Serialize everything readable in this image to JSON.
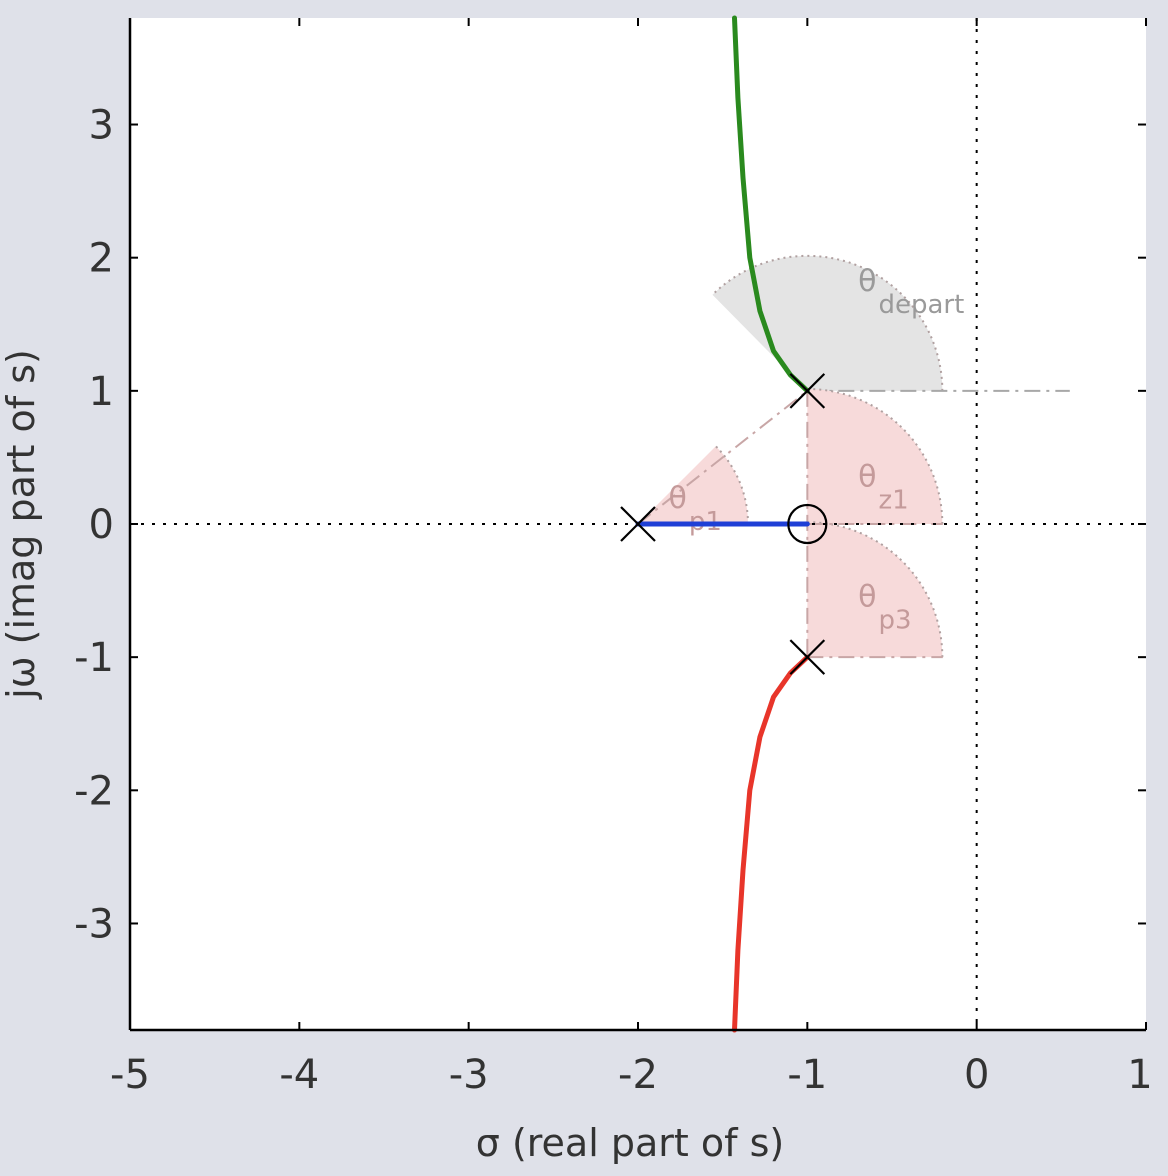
{
  "chart_data": {
    "type": "line",
    "subtype": "root-locus",
    "title": "",
    "xlabel": "σ (real part of s)",
    "ylabel": "jω (imag part of s)",
    "xlim": [
      -5,
      1
    ],
    "ylim": [
      -3.8,
      3.8
    ],
    "xticks": [
      -5,
      -4,
      -3,
      -2,
      -1,
      0,
      1
    ],
    "yticks": [
      -3,
      -2,
      -1,
      0,
      1,
      2,
      3
    ],
    "xtick_labels": [
      "-5",
      "-4",
      "-3",
      "-2",
      "-1",
      "0",
      "1"
    ],
    "ytick_labels": [
      "-3",
      "-2",
      "-1",
      "0",
      "1",
      "2",
      "3"
    ],
    "grid": false,
    "axis_lines": [
      "real-axis dotted at y=0",
      "imag-axis dotted at x=0"
    ],
    "poles": [
      {
        "re": -2,
        "im": 0
      },
      {
        "re": -1,
        "im": 1
      },
      {
        "re": -1,
        "im": -1
      }
    ],
    "zeros": [
      {
        "re": -1,
        "im": 0
      }
    ],
    "series": [
      {
        "color": "#2a8a1e",
        "points": [
          [
            -1.0,
            1.0
          ],
          [
            -1.1,
            1.12
          ],
          [
            -1.2,
            1.3
          ],
          [
            -1.28,
            1.6
          ],
          [
            -1.34,
            2.0
          ],
          [
            -1.38,
            2.6
          ],
          [
            -1.41,
            3.2
          ],
          [
            -1.43,
            3.8
          ]
        ]
      },
      {
        "color": "#e8352a",
        "points": [
          [
            -1.0,
            -1.0
          ],
          [
            -1.1,
            -1.12
          ],
          [
            -1.2,
            -1.3
          ],
          [
            -1.28,
            -1.6
          ],
          [
            -1.34,
            -2.0
          ],
          [
            -1.38,
            -2.6
          ],
          [
            -1.41,
            -3.2
          ],
          [
            -1.43,
            -3.8
          ]
        ]
      },
      {
        "color": "#1f3fd6",
        "points": [
          [
            -2.0,
            0.0
          ],
          [
            -1.0,
            0.0
          ]
        ]
      }
    ],
    "angle_annotations": [
      {
        "symbol": "θ",
        "sub": "depart",
        "color": "#9a9a9a"
      },
      {
        "symbol": "θ",
        "sub": "p1",
        "color": "#c49a9a"
      },
      {
        "symbol": "θ",
        "sub": "z1",
        "color": "#c49a9a"
      },
      {
        "symbol": "θ",
        "sub": "p3",
        "color": "#c49a9a"
      }
    ]
  }
}
